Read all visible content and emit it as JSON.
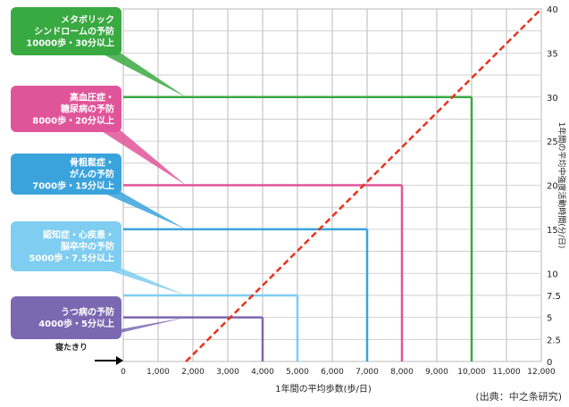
{
  "chart_data": {
    "type": "line",
    "xlabel": "1年間の平均歩数(歩/日)",
    "ylabel": "1年間の平均中強度活動時間(分/日)",
    "xlim": [
      0,
      12000
    ],
    "ylim": [
      0,
      40
    ],
    "x_ticks": [
      "0",
      "1,000",
      "2,000",
      "3,000",
      "4,000",
      "5,000",
      "6,000",
      "7,000",
      "8,000",
      "9,000",
      "10,000",
      "11,000",
      "12,000"
    ],
    "y_ticks": [
      "0",
      "2.5",
      "5",
      "7.5",
      "10",
      "15",
      "20",
      "25",
      "30",
      "35",
      "40"
    ],
    "grid": true,
    "trend_line": {
      "x": [
        1800,
        12000
      ],
      "y": [
        0,
        40
      ],
      "color": "#e8321e"
    },
    "thresholds": [
      {
        "steps": 4000,
        "minutes": 5,
        "color": "#7b68b0",
        "label": "うつ病の予防\n4000歩・5分以上"
      },
      {
        "steps": 5000,
        "minutes": 7.5,
        "color": "#7fcdf0",
        "label": "認知症・心疾患・\n脳卒中の予防\n5000歩・7.5分以上"
      },
      {
        "steps": 7000,
        "minutes": 15,
        "color": "#3aa3dc",
        "label": "骨粗鬆症・\nがんの予防\n7000歩・15分以上"
      },
      {
        "steps": 8000,
        "minutes": 20,
        "color": "#e0559a",
        "label": "高血圧症・\n糖尿病の予防\n8000歩・20分以上"
      },
      {
        "steps": 10000,
        "minutes": 30,
        "color": "#39a942",
        "label": "メタボリック\nシンドロームの予防\n10000歩・30分以上"
      }
    ],
    "annotations": [
      "寝たきり\n寝たきり"
    ]
  },
  "labels": {
    "bedridden": "寝たきり",
    "source": "(出典：中之条研究)"
  }
}
